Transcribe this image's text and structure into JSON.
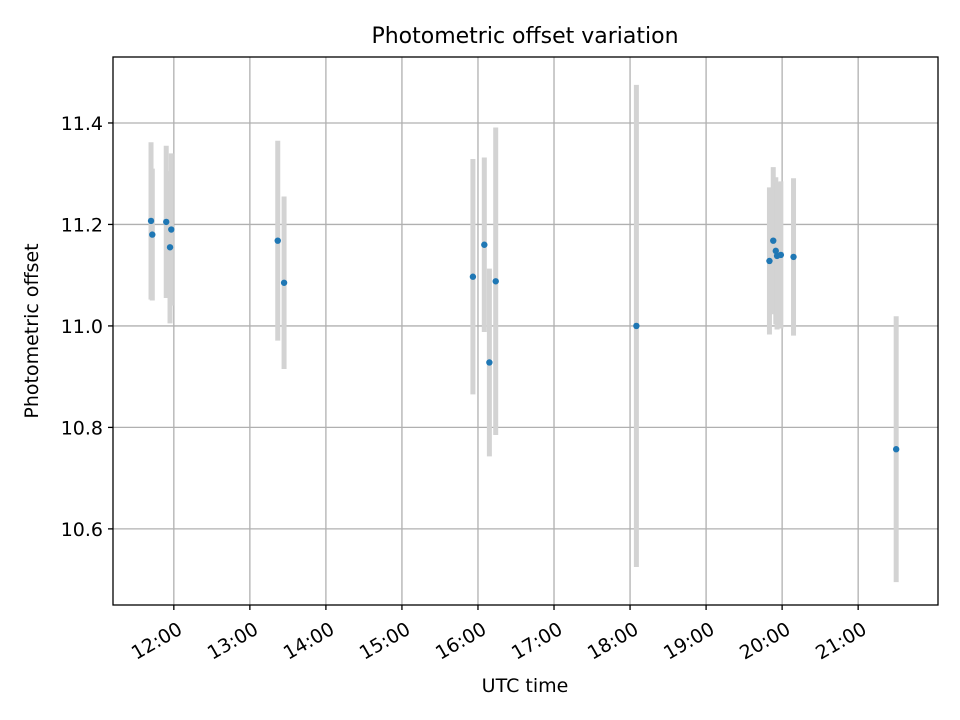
{
  "chart_data": {
    "type": "scatter",
    "title": "Photometric offset variation",
    "xlabel": "UTC time",
    "ylabel": "Photometric offset",
    "xlim": [
      "11:12",
      "22:03"
    ],
    "ylim": [
      10.45,
      11.53
    ],
    "xticks": [
      "12:00",
      "13:00",
      "14:00",
      "15:00",
      "16:00",
      "17:00",
      "18:00",
      "19:00",
      "20:00",
      "21:00"
    ],
    "yticks": [
      10.6,
      10.8,
      11.0,
      11.2,
      11.4
    ],
    "ytick_labels": [
      "10.6",
      "10.8",
      "11.0",
      "11.2",
      "11.4"
    ],
    "grid": true,
    "legend": "none",
    "colors": {
      "point": "#1f77b4",
      "errorbar": "#d3d3d3",
      "grid": "#b0b0b0",
      "axes": "#000000"
    },
    "points": [
      {
        "x": "11:42",
        "y": 11.207,
        "err": 0.155
      },
      {
        "x": "11:43",
        "y": 11.18,
        "err": 0.13
      },
      {
        "x": "11:54",
        "y": 11.205,
        "err": 0.15
      },
      {
        "x": "11:57",
        "y": 11.155,
        "err": 0.15
      },
      {
        "x": "11:58",
        "y": 11.19,
        "err": 0.15
      },
      {
        "x": "13:22",
        "y": 11.168,
        "err": 0.197
      },
      {
        "x": "13:27",
        "y": 11.085,
        "err": 0.17
      },
      {
        "x": "15:56",
        "y": 11.097,
        "err": 0.232
      },
      {
        "x": "16:05",
        "y": 11.16,
        "err": 0.172
      },
      {
        "x": "16:09",
        "y": 10.928,
        "err": 0.185
      },
      {
        "x": "16:14",
        "y": 11.088,
        "err": 0.303
      },
      {
        "x": "18:05",
        "y": 11.0,
        "err": 0.475
      },
      {
        "x": "19:50",
        "y": 11.128,
        "err": 0.145
      },
      {
        "x": "19:53",
        "y": 11.168,
        "err": 0.145
      },
      {
        "x": "19:55",
        "y": 11.148,
        "err": 0.145
      },
      {
        "x": "19:56",
        "y": 11.138,
        "err": 0.145
      },
      {
        "x": "19:59",
        "y": 11.14,
        "err": 0.145
      },
      {
        "x": "20:09",
        "y": 11.136,
        "err": 0.155
      },
      {
        "x": "21:30",
        "y": 10.757,
        "err": 0.262
      }
    ]
  }
}
